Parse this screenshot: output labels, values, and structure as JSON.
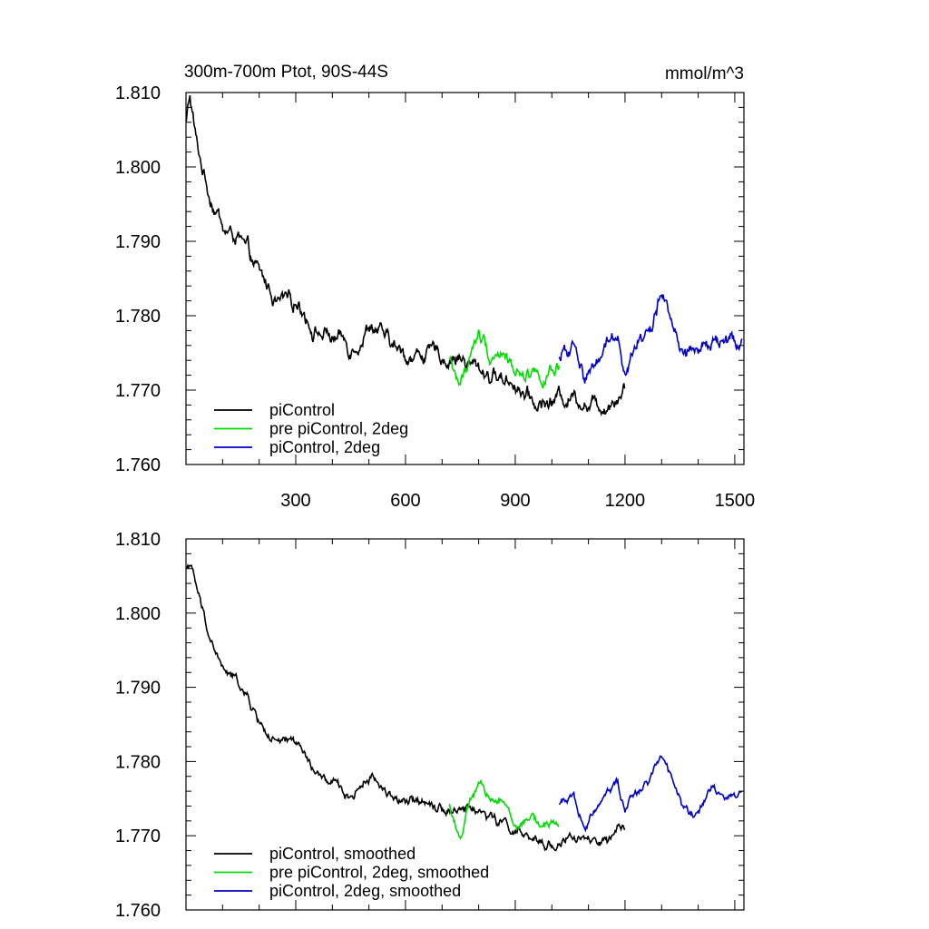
{
  "chart_data": [
    {
      "type": "line",
      "title": "300m-700m Ptot, 90S-44S",
      "units": "mmol/m^3",
      "xlim": [
        0,
        1525
      ],
      "ylim": [
        1.76,
        1.81
      ],
      "x_ticks": [
        300,
        600,
        900,
        1200,
        1500
      ],
      "y_ticks": [
        "1.810",
        "1.800",
        "1.790",
        "1.780",
        "1.770",
        "1.760"
      ],
      "y_tick_values": [
        1.81,
        1.8,
        1.79,
        1.78,
        1.77,
        1.76
      ],
      "grid": false,
      "legend_position": "bottom-left",
      "series": [
        {
          "name": "piControl",
          "color": "#000000",
          "x_range": [
            1,
            1200
          ],
          "anchors": [
            [
              1,
              1.806
            ],
            [
              10,
              1.81
            ],
            [
              30,
              1.803
            ],
            [
              60,
              1.797
            ],
            [
              100,
              1.792
            ],
            [
              150,
              1.79
            ],
            [
              200,
              1.785
            ],
            [
              250,
              1.782
            ],
            [
              300,
              1.783
            ],
            [
              350,
              1.779
            ],
            [
              400,
              1.777
            ],
            [
              450,
              1.775
            ],
            [
              500,
              1.778
            ],
            [
              550,
              1.776
            ],
            [
              600,
              1.774
            ],
            [
              650,
              1.775
            ],
            [
              700,
              1.774
            ],
            [
              750,
              1.774
            ],
            [
              800,
              1.773
            ],
            [
              850,
              1.772
            ],
            [
              900,
              1.771
            ],
            [
              950,
              1.769
            ],
            [
              1000,
              1.769
            ],
            [
              1050,
              1.77
            ],
            [
              1100,
              1.769
            ],
            [
              1150,
              1.769
            ],
            [
              1200,
              1.771
            ]
          ],
          "noise": 0.0015
        },
        {
          "name": "pre piControl, 2deg",
          "color": "#00dd00",
          "x_range": [
            720,
            1020
          ],
          "anchors": [
            [
              720,
              1.774
            ],
            [
              750,
              1.771
            ],
            [
              780,
              1.775
            ],
            [
              800,
              1.777
            ],
            [
              830,
              1.775
            ],
            [
              860,
              1.776
            ],
            [
              900,
              1.773
            ],
            [
              940,
              1.773
            ],
            [
              980,
              1.772
            ],
            [
              1020,
              1.772
            ]
          ],
          "noise": 0.0013
        },
        {
          "name": "piControl, 2deg",
          "color": "#0000cc",
          "x_range": [
            1020,
            1520
          ],
          "anchors": [
            [
              1020,
              1.774
            ],
            [
              1060,
              1.776
            ],
            [
              1090,
              1.772
            ],
            [
              1120,
              1.774
            ],
            [
              1150,
              1.777
            ],
            [
              1180,
              1.778
            ],
            [
              1200,
              1.774
            ],
            [
              1230,
              1.776
            ],
            [
              1270,
              1.778
            ],
            [
              1300,
              1.783
            ],
            [
              1330,
              1.779
            ],
            [
              1360,
              1.775
            ],
            [
              1400,
              1.775
            ],
            [
              1440,
              1.777
            ],
            [
              1480,
              1.776
            ],
            [
              1520,
              1.776
            ]
          ],
          "noise": 0.0014
        }
      ]
    },
    {
      "type": "line",
      "title": "",
      "xlim": [
        0,
        1525
      ],
      "ylim": [
        1.76,
        1.81
      ],
      "y_ticks": [
        "1.810",
        "1.800",
        "1.790",
        "1.780",
        "1.770",
        "1.760"
      ],
      "y_tick_values": [
        1.81,
        1.8,
        1.79,
        1.78,
        1.77,
        1.76
      ],
      "grid": false,
      "legend_position": "bottom-left",
      "series": [
        {
          "name": "piControl, smoothed",
          "color": "#000000",
          "x_range": [
            1,
            1200
          ],
          "anchors": [
            [
              1,
              1.806
            ],
            [
              10,
              1.807
            ],
            [
              30,
              1.803
            ],
            [
              60,
              1.797
            ],
            [
              100,
              1.792
            ],
            [
              150,
              1.79
            ],
            [
              200,
              1.785
            ],
            [
              250,
              1.782
            ],
            [
              300,
              1.783
            ],
            [
              350,
              1.779
            ],
            [
              400,
              1.777
            ],
            [
              450,
              1.775
            ],
            [
              500,
              1.778
            ],
            [
              550,
              1.776
            ],
            [
              600,
              1.774
            ],
            [
              650,
              1.775
            ],
            [
              700,
              1.774
            ],
            [
              750,
              1.774
            ],
            [
              800,
              1.773
            ],
            [
              850,
              1.772
            ],
            [
              900,
              1.771
            ],
            [
              950,
              1.769
            ],
            [
              1000,
              1.769
            ],
            [
              1050,
              1.77
            ],
            [
              1100,
              1.769
            ],
            [
              1150,
              1.769
            ],
            [
              1200,
              1.771
            ]
          ],
          "noise": 0.0009
        },
        {
          "name": "pre piControl, 2deg, smoothed",
          "color": "#00dd00",
          "x_range": [
            720,
            1020
          ],
          "anchors": [
            [
              720,
              1.774
            ],
            [
              750,
              1.77
            ],
            [
              780,
              1.775
            ],
            [
              800,
              1.777
            ],
            [
              830,
              1.775
            ],
            [
              860,
              1.776
            ],
            [
              900,
              1.772
            ],
            [
              940,
              1.773
            ],
            [
              980,
              1.772
            ],
            [
              1020,
              1.772
            ]
          ],
          "noise": 0.0008
        },
        {
          "name": "piControl, 2deg, smoothed",
          "color": "#0000cc",
          "x_range": [
            1020,
            1520
          ],
          "anchors": [
            [
              1020,
              1.774
            ],
            [
              1060,
              1.776
            ],
            [
              1090,
              1.771
            ],
            [
              1120,
              1.774
            ],
            [
              1150,
              1.777
            ],
            [
              1180,
              1.778
            ],
            [
              1200,
              1.774
            ],
            [
              1230,
              1.776
            ],
            [
              1270,
              1.778
            ],
            [
              1300,
              1.782
            ],
            [
              1330,
              1.778
            ],
            [
              1360,
              1.774
            ],
            [
              1400,
              1.774
            ],
            [
              1440,
              1.776
            ],
            [
              1480,
              1.775
            ],
            [
              1520,
              1.776
            ]
          ],
          "noise": 0.0008
        }
      ]
    }
  ]
}
